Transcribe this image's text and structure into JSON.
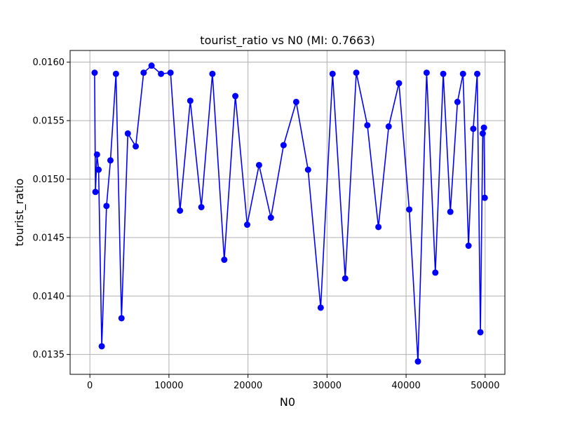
{
  "chart_data": {
    "type": "line",
    "title": "tourist_ratio vs N0 (MI: 0.7663)",
    "xlabel": "N0",
    "ylabel": "tourist_ratio",
    "xlim": [
      -2500,
      52500
    ],
    "ylim": [
      0.01333,
      0.0161
    ],
    "xticks": [
      0,
      10000,
      20000,
      30000,
      40000,
      50000
    ],
    "xtick_labels": [
      "0",
      "10000",
      "20000",
      "30000",
      "40000",
      "50000"
    ],
    "yticks": [
      0.0135,
      0.014,
      0.0145,
      0.015,
      0.0155,
      0.016
    ],
    "ytick_labels": [
      "0.0135",
      "0.0140",
      "0.0145",
      "0.0150",
      "0.0155",
      "0.0160"
    ],
    "grid": true,
    "legend": "none",
    "colors": {
      "series": "#0000ff",
      "grid": "#b0b0b0"
    },
    "series": [
      {
        "marker": "circle",
        "x": [
          600,
          700,
          900,
          1100,
          1500,
          2100,
          2600,
          3300,
          4000,
          4800,
          5800,
          6800,
          7800,
          9000,
          10200,
          11400,
          12700,
          14100,
          15500,
          17000,
          18400,
          19900,
          21400,
          22900,
          24500,
          26100,
          27600,
          29200,
          30700,
          32300,
          33700,
          35100,
          36500,
          37800,
          39100,
          40400,
          41500,
          42600,
          43700,
          44700,
          45600,
          46500,
          47200,
          47900,
          48500,
          49000,
          49400,
          49700,
          49850,
          49950
        ],
        "y": [
          0.01591,
          0.01489,
          0.01521,
          0.01508,
          0.01357,
          0.01477,
          0.01516,
          0.0159,
          0.01381,
          0.01539,
          0.01528,
          0.01591,
          0.01597,
          0.0159,
          0.01591,
          0.01473,
          0.01567,
          0.01476,
          0.0159,
          0.01431,
          0.01571,
          0.01461,
          0.01512,
          0.01467,
          0.01529,
          0.01566,
          0.01508,
          0.0139,
          0.0159,
          0.01415,
          0.01591,
          0.01546,
          0.01459,
          0.01545,
          0.01582,
          0.01474,
          0.01344,
          0.01591,
          0.0142,
          0.0159,
          0.01472,
          0.01566,
          0.0159,
          0.01443,
          0.01543,
          0.0159,
          0.01369,
          0.01539,
          0.01544,
          0.01484
        ]
      }
    ]
  }
}
